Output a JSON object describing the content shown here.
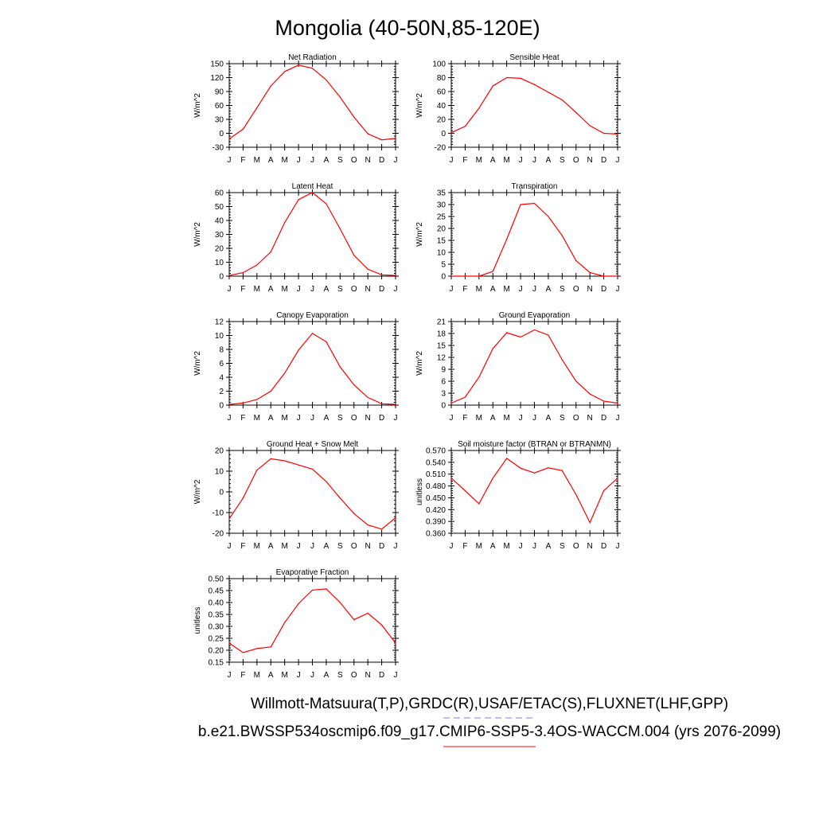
{
  "figure": {
    "title": "Mongolia (40-50N,85-120E)",
    "legend": {
      "line1": "Willmott-Matsuura(T,P),GRDC(R),USAF/ETAC(S),FLUXNET(LHF,GPP)",
      "line2": "b.e21.BWSSP534oscmip6.f09_g17.CMIP6-SSP5-3.4OS-WACCM.004 (yrs 2076-2099)",
      "obs_color": "#7a7aff",
      "model_color": "#ff0000"
    }
  },
  "chart_data": [
    {
      "type": "line",
      "title": "Net Radiation",
      "ylabel": "W/m^2",
      "categories": [
        "J",
        "F",
        "M",
        "A",
        "M",
        "J",
        "J",
        "A",
        "S",
        "O",
        "N",
        "D",
        "J"
      ],
      "ylim": [
        -30,
        150
      ],
      "yticks": [
        "-30",
        "0",
        "30",
        "60",
        "90",
        "120",
        "150"
      ],
      "ytick_values": [
        -30,
        0,
        30,
        60,
        90,
        120,
        150
      ],
      "series": [
        {
          "color": "#ff0000",
          "values": [
            -12,
            9,
            55,
            102,
            133,
            147,
            140,
            115,
            78,
            35,
            -1,
            -14,
            -11
          ]
        }
      ]
    },
    {
      "type": "line",
      "title": "Sensible Heat",
      "ylabel": "W/m^2",
      "categories": [
        "J",
        "F",
        "M",
        "A",
        "M",
        "J",
        "J",
        "A",
        "S",
        "O",
        "N",
        "D",
        "J"
      ],
      "ylim": [
        -20,
        100
      ],
      "yticks": [
        "-20",
        "0",
        "20",
        "40",
        "60",
        "80",
        "100"
      ],
      "ytick_values": [
        -20,
        0,
        20,
        40,
        60,
        80,
        100
      ],
      "series": [
        {
          "color": "#ff0000",
          "values": [
            1,
            10,
            36,
            68,
            80,
            79,
            70,
            59,
            48,
            30,
            11,
            0,
            -1
          ]
        }
      ]
    },
    {
      "type": "line",
      "title": "Latent Heat",
      "ylabel": "W/m^2",
      "categories": [
        "J",
        "F",
        "M",
        "A",
        "M",
        "J",
        "J",
        "A",
        "S",
        "O",
        "N",
        "D",
        "J"
      ],
      "ylim": [
        0,
        60
      ],
      "yticks": [
        "0",
        "10",
        "20",
        "30",
        "40",
        "50",
        "60"
      ],
      "ytick_values": [
        0,
        10,
        20,
        30,
        40,
        50,
        60
      ],
      "series": [
        {
          "color": "#ff0000",
          "values": [
            0.5,
            2.5,
            8,
            17.5,
            38.5,
            55,
            60,
            52,
            34,
            15,
            5,
            1,
            0.5
          ]
        }
      ]
    },
    {
      "type": "line",
      "title": "Transpiration",
      "ylabel": "W/m^2",
      "categories": [
        "J",
        "F",
        "M",
        "A",
        "M",
        "J",
        "J",
        "A",
        "S",
        "O",
        "N",
        "D",
        "J"
      ],
      "ylim": [
        0,
        35
      ],
      "yticks": [
        "0",
        "5",
        "10",
        "15",
        "20",
        "25",
        "30",
        "35"
      ],
      "ytick_values": [
        0,
        5,
        10,
        15,
        20,
        25,
        30,
        35
      ],
      "series": [
        {
          "color": "#ff0000",
          "values": [
            0,
            0,
            0,
            2,
            15.5,
            30,
            30.5,
            25,
            17,
            6.5,
            1.5,
            0,
            0
          ]
        }
      ]
    },
    {
      "type": "line",
      "title": "Canopy Evaporation",
      "ylabel": "W/m^2",
      "categories": [
        "J",
        "F",
        "M",
        "A",
        "M",
        "J",
        "J",
        "A",
        "S",
        "O",
        "N",
        "D",
        "J"
      ],
      "ylim": [
        0,
        12
      ],
      "yticks": [
        "0",
        "2",
        "4",
        "6",
        "8",
        "10",
        "12"
      ],
      "ytick_values": [
        0,
        2,
        4,
        6,
        8,
        10,
        12
      ],
      "series": [
        {
          "color": "#ff0000",
          "values": [
            0.1,
            0.3,
            0.8,
            2,
            4.6,
            7.9,
            10.3,
            9.1,
            5.5,
            2.9,
            1.1,
            0.2,
            0.1
          ]
        }
      ]
    },
    {
      "type": "line",
      "title": "Ground Evaporation",
      "ylabel": "W/m^2",
      "categories": [
        "J",
        "F",
        "M",
        "A",
        "M",
        "J",
        "J",
        "A",
        "S",
        "O",
        "N",
        "D",
        "J"
      ],
      "ylim": [
        0,
        21
      ],
      "yticks": [
        "0",
        "3",
        "6",
        "9",
        "12",
        "15",
        "18",
        "21"
      ],
      "ytick_values": [
        0,
        3,
        6,
        9,
        12,
        15,
        18,
        21
      ],
      "series": [
        {
          "color": "#ff0000",
          "values": [
            0.5,
            2,
            7,
            14.2,
            18.2,
            17.1,
            18.9,
            17.6,
            11.4,
            6,
            2.8,
            1,
            0.5
          ]
        }
      ]
    },
    {
      "type": "line",
      "title": "Ground Heat + Snow Melt",
      "ylabel": "W/m^2",
      "categories": [
        "J",
        "F",
        "M",
        "A",
        "M",
        "J",
        "J",
        "A",
        "S",
        "O",
        "N",
        "D",
        "J"
      ],
      "ylim": [
        -20,
        20
      ],
      "yticks": [
        "-20",
        "-10",
        "0",
        "10",
        "20"
      ],
      "ytick_values": [
        -20,
        -10,
        0,
        10,
        20
      ],
      "series": [
        {
          "color": "#ff0000",
          "values": [
            -13,
            -3,
            10.5,
            16,
            15,
            13,
            11,
            5,
            -3,
            -10.5,
            -16,
            -18,
            -12.5
          ]
        }
      ]
    },
    {
      "type": "line",
      "title": "Soil moisture factor (BTRAN or BTRANMN)",
      "ylabel": "unitless",
      "categories": [
        "J",
        "F",
        "M",
        "A",
        "M",
        "J",
        "J",
        "A",
        "S",
        "O",
        "N",
        "D",
        "J"
      ],
      "ylim": [
        0.36,
        0.57
      ],
      "yticks": [
        "0.360",
        "0.390",
        "0.420",
        "0.450",
        "0.480",
        "0.510",
        "0.540",
        "0.570"
      ],
      "ytick_values": [
        0.36,
        0.39,
        0.42,
        0.45,
        0.48,
        0.51,
        0.54,
        0.57
      ],
      "series": [
        {
          "color": "#ff0000",
          "values": [
            0.5,
            0.468,
            0.435,
            0.5,
            0.55,
            0.525,
            0.513,
            0.526,
            0.519,
            0.458,
            0.387,
            0.468,
            0.5
          ]
        }
      ]
    },
    {
      "type": "line",
      "title": "Evaporative Fraction",
      "ylabel": "unitless",
      "categories": [
        "J",
        "F",
        "M",
        "A",
        "M",
        "J",
        "J",
        "A",
        "S",
        "O",
        "N",
        "D",
        "J"
      ],
      "ylim": [
        0.15,
        0.5
      ],
      "yticks": [
        "0.15",
        "0.20",
        "0.25",
        "0.30",
        "0.35",
        "0.40",
        "0.45",
        "0.50"
      ],
      "ytick_values": [
        0.15,
        0.2,
        0.25,
        0.3,
        0.35,
        0.4,
        0.45,
        0.5
      ],
      "series": [
        {
          "color": "#ff0000",
          "values": [
            0.23,
            0.19,
            0.207,
            0.214,
            0.316,
            0.395,
            0.452,
            0.457,
            0.4,
            0.328,
            0.355,
            0.306,
            0.23
          ]
        }
      ]
    }
  ]
}
